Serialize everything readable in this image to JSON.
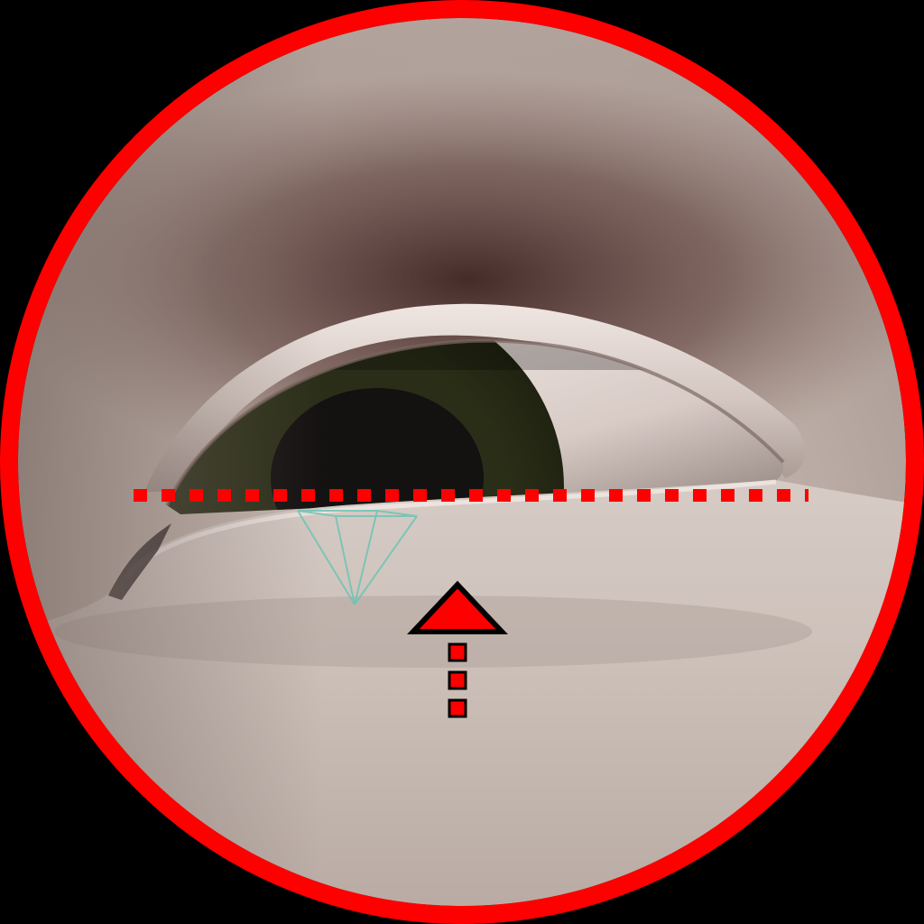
{
  "scene": {
    "subject": "eye",
    "iris_color": "dark-olive",
    "skin_tone": "pale-greyish-pink"
  },
  "overlay": {
    "ring_color": "#ff0000",
    "guide_line": {
      "style": "dotted",
      "color": "#ff0000"
    },
    "arrow": {
      "direction": "up",
      "fill": "#ff0000",
      "outline": "#000000"
    },
    "camera_gizmo": {
      "shape": "inverted-pyramid",
      "color": "#6ec4b4"
    }
  }
}
